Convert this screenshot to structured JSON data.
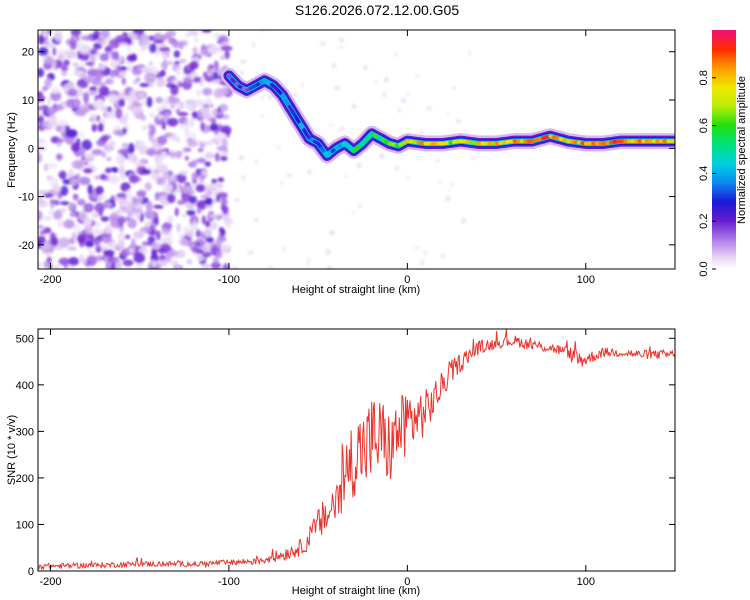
{
  "title": "S126.2026.072.12.00.G05",
  "chart_data": [
    {
      "type": "heatmap",
      "name": "spectrogram",
      "xlabel": "Height of straight line (km)",
      "ylabel": "Frequency (Hz)",
      "xlim": [
        -207,
        150
      ],
      "ylim": [
        -25,
        24.5
      ],
      "xticks": [
        -200,
        -100,
        0,
        100
      ],
      "xtick_labels": [
        "-200",
        "-100",
        "0",
        "100"
      ],
      "yticks": [
        -20,
        -10,
        0,
        10,
        20
      ],
      "ytick_labels": [
        "-20",
        "-10",
        "0",
        "10",
        "20"
      ],
      "colorbar": {
        "label": "Normalized spectral amplitude",
        "range": [
          0,
          1
        ],
        "ticks": [
          0,
          0.2,
          0.4,
          0.6,
          0.8
        ],
        "tick_labels": [
          "0.0",
          "0.2",
          "0.4",
          "0.6",
          "0.8"
        ]
      },
      "ridge": {
        "x": [
          -100,
          -95,
          -90,
          -85,
          -80,
          -75,
          -70,
          -65,
          -60,
          -55,
          -50,
          -45,
          -40,
          -35,
          -30,
          -25,
          -20,
          -15,
          -10,
          -5,
          0,
          10,
          20,
          30,
          40,
          50,
          60,
          70,
          80,
          85,
          90,
          100,
          110,
          120,
          130,
          140,
          150
        ],
        "freq": [
          15,
          13,
          12,
          13,
          14,
          13,
          11,
          8,
          5,
          2,
          1,
          -1.5,
          0,
          1,
          -0.5,
          1,
          3,
          2,
          1,
          0.5,
          1.5,
          1,
          1,
          1.5,
          1,
          1,
          1.5,
          1.5,
          2.5,
          2,
          1.5,
          1,
          1,
          1.5,
          1.5,
          1.5,
          1.5
        ],
        "amplitude": [
          0.15,
          0.2,
          0.25,
          0.3,
          0.35,
          0.3,
          0.3,
          0.3,
          0.35,
          0.3,
          0.3,
          0.35,
          0.4,
          0.4,
          0.5,
          0.5,
          0.5,
          0.55,
          0.6,
          0.6,
          0.7,
          0.8,
          0.7,
          0.7,
          0.75,
          0.75,
          0.8,
          0.8,
          0.9,
          0.85,
          0.8,
          0.85,
          0.9,
          0.85,
          0.8,
          0.8,
          0.8
        ]
      },
      "noise_region_x": [
        -207,
        -100
      ]
    },
    {
      "type": "line",
      "name": "snr",
      "xlabel": "Height of straight line (km)",
      "ylabel": "SNR (10 * v/v)",
      "xlim": [
        -207,
        150
      ],
      "ylim": [
        0,
        520
      ],
      "xticks": [
        -200,
        -100,
        0,
        100
      ],
      "xtick_labels": [
        "-200",
        "-100",
        "0",
        "100"
      ],
      "yticks": [
        0,
        100,
        200,
        300,
        400,
        500
      ],
      "ytick_labels": [
        "0",
        "100",
        "200",
        "300",
        "400",
        "500"
      ],
      "color": "#e8352e",
      "series": [
        {
          "name": "SNR",
          "x": [
            -207,
            -180,
            -150,
            -120,
            -100,
            -90,
            -80,
            -70,
            -60,
            -55,
            -50,
            -45,
            -40,
            -35,
            -30,
            -25,
            -20,
            -15,
            -10,
            -5,
            0,
            5,
            10,
            15,
            20,
            25,
            30,
            40,
            50,
            60,
            70,
            80,
            90,
            95,
            100,
            110,
            120,
            130,
            140,
            150
          ],
          "y": [
            10,
            12,
            15,
            15,
            18,
            20,
            25,
            35,
            50,
            70,
            100,
            120,
            150,
            200,
            250,
            260,
            280,
            290,
            260,
            300,
            320,
            330,
            340,
            370,
            400,
            430,
            450,
            480,
            490,
            495,
            485,
            480,
            470,
            455,
            455,
            470,
            470,
            465,
            465,
            465
          ],
          "noise_amplitude": [
            6,
            6,
            6,
            6,
            6,
            8,
            10,
            14,
            18,
            25,
            35,
            45,
            60,
            80,
            90,
            90,
            100,
            90,
            80,
            70,
            80,
            60,
            50,
            40,
            30,
            25,
            20,
            15,
            12,
            12,
            12,
            12,
            12,
            25,
            15,
            10,
            10,
            10,
            10,
            10
          ]
        }
      ]
    }
  ]
}
